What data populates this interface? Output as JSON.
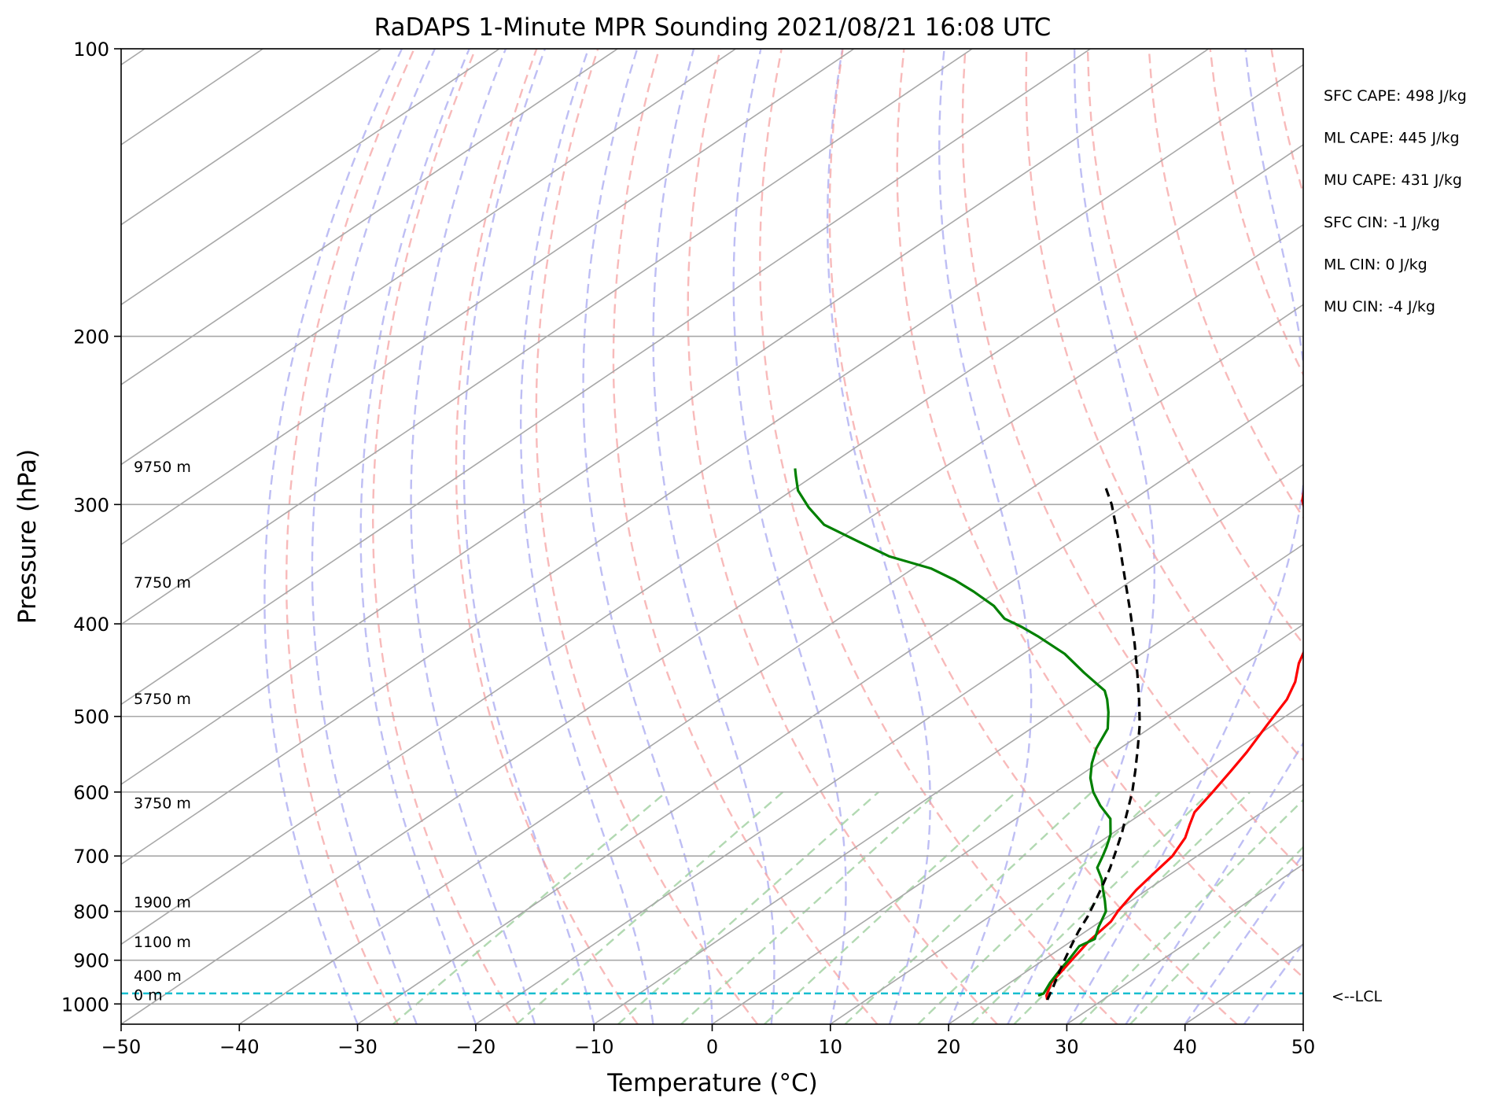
{
  "chart_data": {
    "type": "skew-t",
    "title": "RaDAPS 1-Minute MPR Sounding 2021/08/21 16:08 UTC",
    "xlabel": "Temperature (°C)",
    "ylabel": "Pressure (hPa)",
    "xlim": [
      -50,
      50
    ],
    "ylim": [
      1050,
      100
    ],
    "y_scale": "log",
    "grid": true,
    "x_ticks": [
      "−50",
      "−40",
      "−30",
      "−20",
      "−10",
      "0",
      "10",
      "20",
      "30",
      "40",
      "50"
    ],
    "y_ticks": [
      "100",
      "200",
      "300",
      "400",
      "500",
      "600",
      "700",
      "800",
      "900",
      "1000"
    ],
    "height_labels": [
      {
        "text": "0 m",
        "pressure": 1000
      },
      {
        "text": "400 m",
        "pressure": 955
      },
      {
        "text": "1100 m",
        "pressure": 880
      },
      {
        "text": "1900 m",
        "pressure": 800
      },
      {
        "text": "3750 m",
        "pressure": 630
      },
      {
        "text": "5750 m",
        "pressure": 490
      },
      {
        "text": "7750 m",
        "pressure": 370
      },
      {
        "text": "9750 m",
        "pressure": 280
      }
    ],
    "stats": [
      "SFC CAPE: 498 J/kg",
      "ML CAPE: 445 J/kg",
      "MU CAPE: 431 J/kg",
      "SFC CIN: -1 J/kg",
      "ML CIN: 0 J/kg",
      "MU CIN: -4 J/kg"
    ],
    "lcl": {
      "label": "<--LCL",
      "pressure": 975
    },
    "series": [
      {
        "color": "#ff0000",
        "points": [
          [
            25.3,
            990
          ],
          [
            24.7,
            980
          ],
          [
            23.5,
            950
          ],
          [
            22.4,
            900
          ],
          [
            21.5,
            860
          ],
          [
            20.9,
            820
          ],
          [
            20.2,
            800
          ],
          [
            19.1,
            760
          ],
          [
            18.5,
            730
          ],
          [
            17.9,
            700
          ],
          [
            16.7,
            670
          ],
          [
            15.5,
            650
          ],
          [
            14.3,
            630
          ],
          [
            13.3,
            600
          ],
          [
            12.2,
            570
          ],
          [
            11.2,
            545
          ],
          [
            9.5,
            510
          ],
          [
            8.0,
            480
          ],
          [
            6.5,
            460
          ],
          [
            4.5,
            440
          ],
          [
            2.8,
            420
          ],
          [
            0.6,
            400
          ],
          [
            -0.8,
            385
          ],
          [
            -3.0,
            370
          ],
          [
            -5.3,
            355
          ],
          [
            -7.5,
            340
          ],
          [
            -10.2,
            325
          ],
          [
            -13.0,
            310
          ],
          [
            -15.6,
            297
          ],
          [
            -17.5,
            285
          ]
        ]
      },
      {
        "color": "#008000",
        "points": [
          [
            24.0,
            980
          ],
          [
            24.2,
            975
          ],
          [
            23.4,
            950
          ],
          [
            22.6,
            920
          ],
          [
            22.0,
            895
          ],
          [
            21.3,
            870
          ],
          [
            21.7,
            855
          ],
          [
            20.5,
            830
          ],
          [
            19.2,
            800
          ],
          [
            17.8,
            780
          ],
          [
            16.3,
            760
          ],
          [
            14.8,
            740
          ],
          [
            13.0,
            720
          ],
          [
            12.0,
            700
          ],
          [
            11.2,
            685
          ],
          [
            10.0,
            665
          ],
          [
            8.0,
            640
          ],
          [
            5.5,
            620
          ],
          [
            3.2,
            600
          ],
          [
            1.2,
            580
          ],
          [
            -0.5,
            560
          ],
          [
            -2.0,
            540
          ],
          [
            -3.5,
            515
          ],
          [
            -5.5,
            495
          ],
          [
            -7.2,
            480
          ],
          [
            -8.5,
            470
          ],
          [
            -12.5,
            450
          ],
          [
            -16.5,
            430
          ],
          [
            -21.0,
            412
          ],
          [
            -23.5,
            403
          ],
          [
            -26.0,
            395
          ],
          [
            -28.5,
            383
          ],
          [
            -32.0,
            370
          ],
          [
            -35.0,
            360
          ],
          [
            -38.5,
            350
          ],
          [
            -43.5,
            340
          ],
          [
            -48.0,
            328
          ],
          [
            -53.0,
            315
          ],
          [
            -56.5,
            302
          ],
          [
            -59.5,
            290
          ],
          [
            -61.5,
            280
          ],
          [
            -62.5,
            275
          ]
        ]
      },
      {
        "color": "#000000",
        "dashed": true,
        "points": [
          [
            25.3,
            990
          ],
          [
            24.2,
            960
          ],
          [
            23.0,
            930
          ],
          [
            21.8,
            900
          ],
          [
            20.6,
            870
          ],
          [
            19.4,
            840
          ],
          [
            18.3,
            810
          ],
          [
            17.0,
            780
          ],
          [
            15.6,
            750
          ],
          [
            14.1,
            720
          ],
          [
            12.4,
            690
          ],
          [
            10.6,
            660
          ],
          [
            8.6,
            630
          ],
          [
            6.5,
            600
          ],
          [
            4.1,
            570
          ],
          [
            1.5,
            540
          ],
          [
            -1.3,
            510
          ],
          [
            -4.5,
            480
          ],
          [
            -8.0,
            450
          ],
          [
            -11.8,
            420
          ],
          [
            -16.0,
            390
          ],
          [
            -20.6,
            360
          ],
          [
            -25.6,
            330
          ],
          [
            -31.2,
            300
          ],
          [
            -34.5,
            285
          ]
        ]
      }
    ]
  }
}
